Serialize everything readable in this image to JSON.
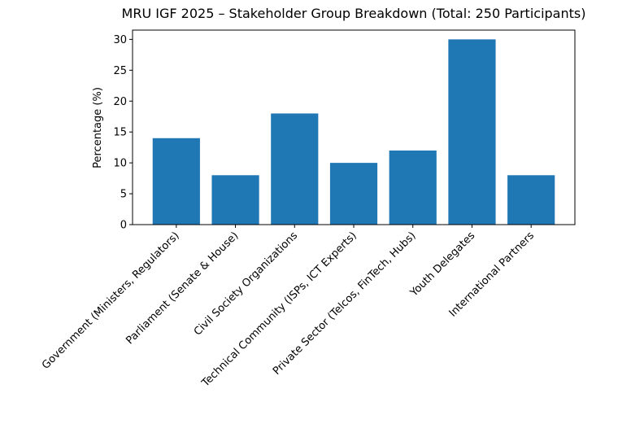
{
  "chart_data": {
    "type": "bar",
    "title": "MRU IGF 2025 – Stakeholder Group Breakdown (Total: 250 Participants)",
    "y_label": "Percentage (%)",
    "categories": [
      "Government (Ministers, Regulators)",
      "Parliament (Senate & House)",
      "Civil Society Organizations",
      "Technical Community (ISPs, ICT Experts)",
      "Private Sector (Telcos, FinTech, Hubs)",
      "Youth Delegates",
      "International Partners"
    ],
    "values": [
      14,
      8,
      18,
      10,
      12,
      30,
      8
    ],
    "color": "#1f77b4",
    "ylim": [
      0,
      31.5
    ],
    "yticks": [
      0,
      5,
      10,
      15,
      20,
      25,
      30
    ],
    "grid": false
  }
}
